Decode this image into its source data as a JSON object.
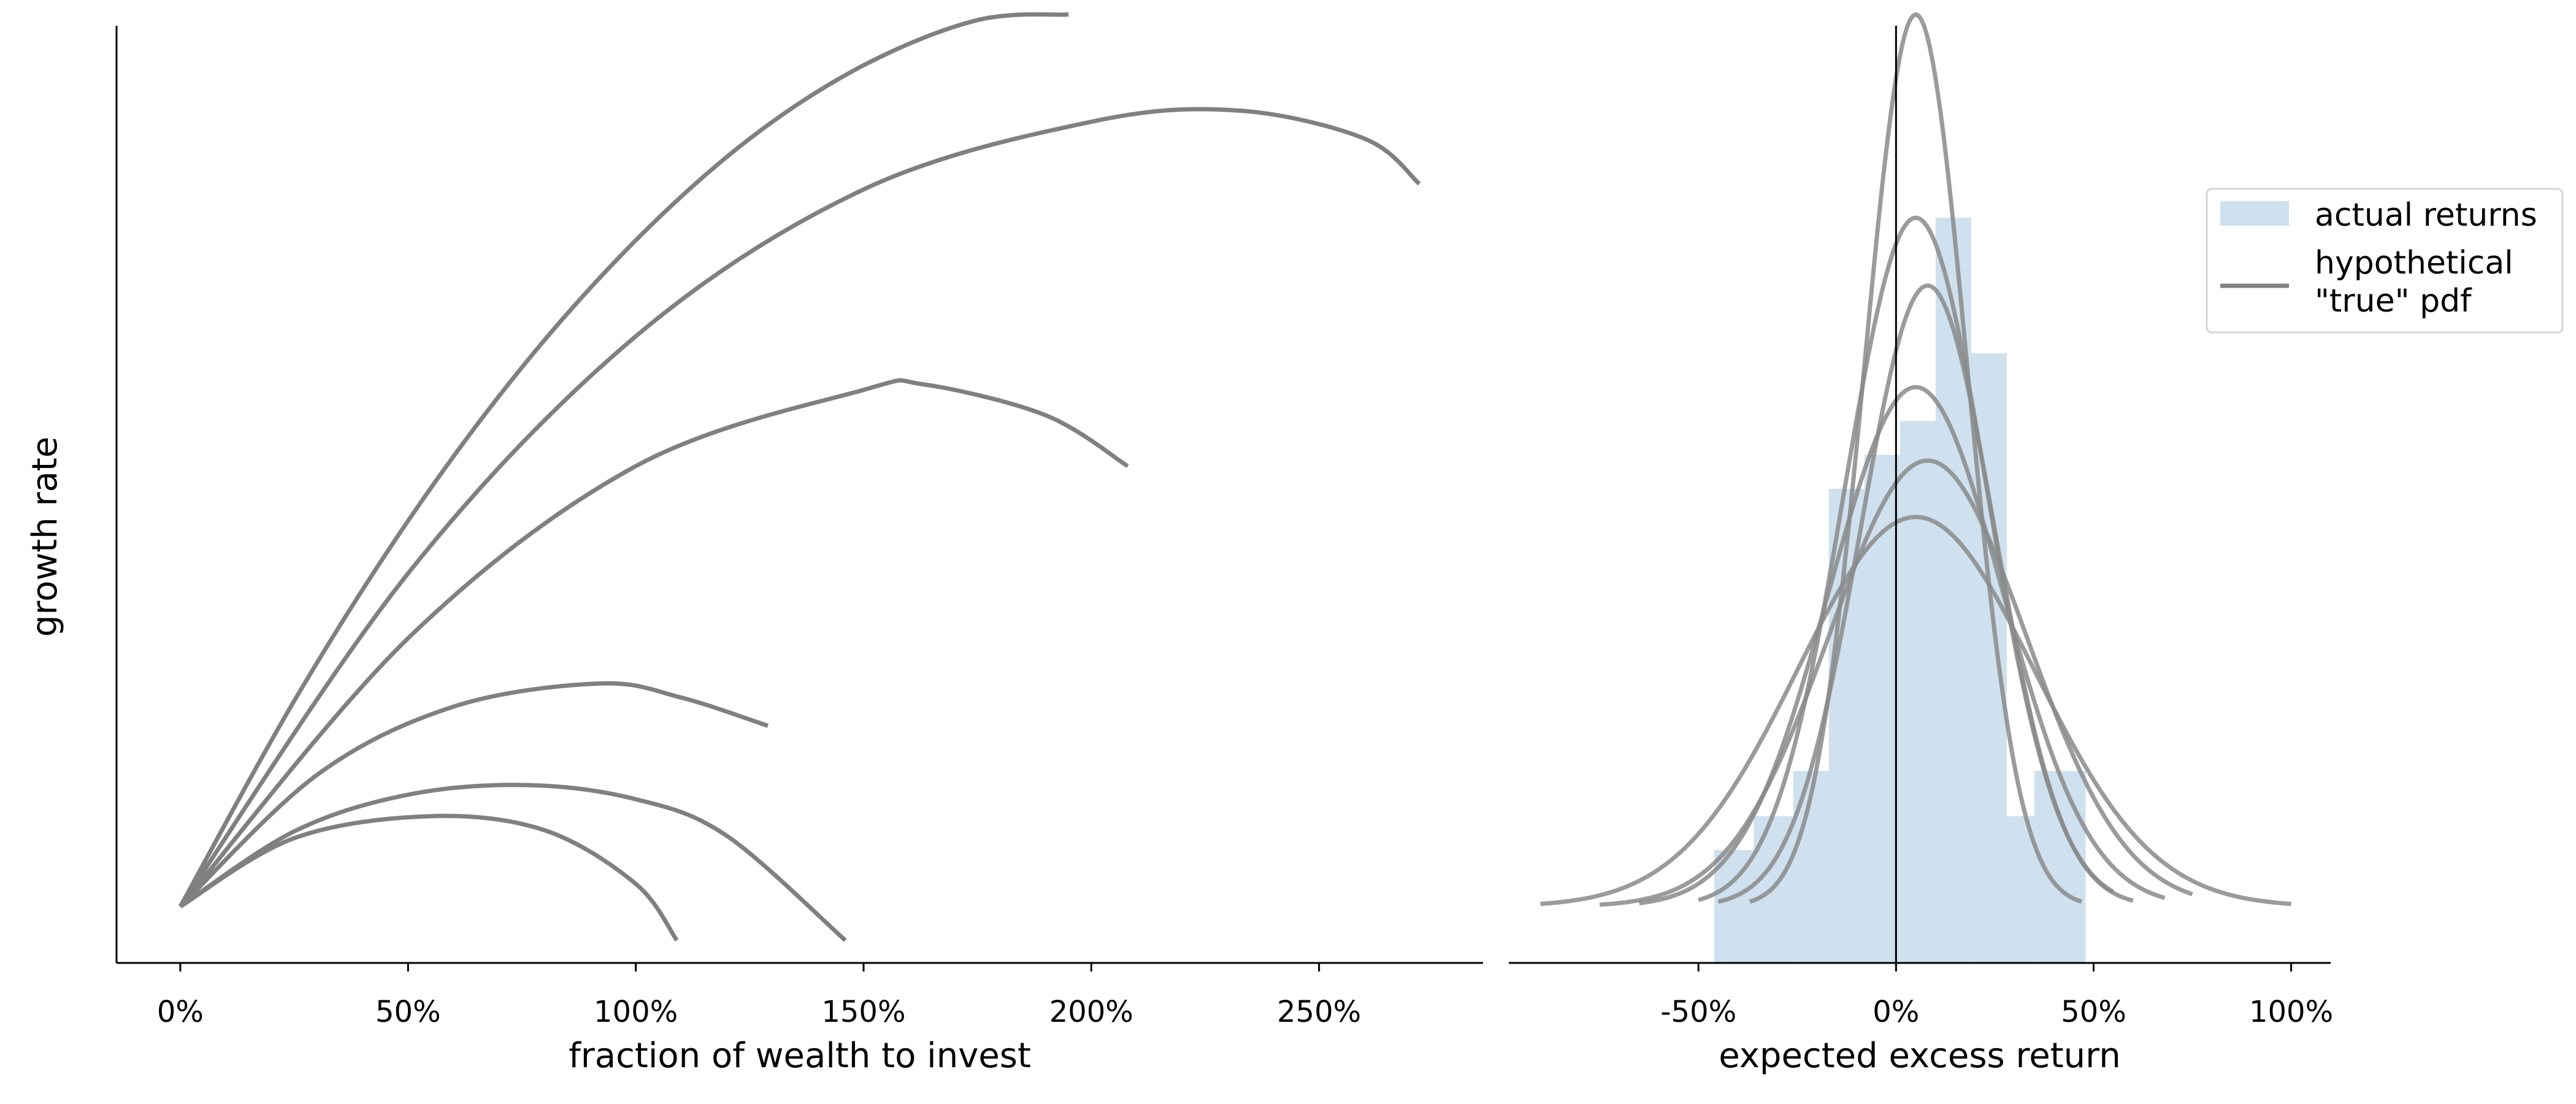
{
  "chart_data": [
    {
      "type": "line",
      "title": "",
      "xlabel": "fraction of wealth to invest",
      "ylabel": "growth rate",
      "xlim": [
        -0.14,
        2.86
      ],
      "ylim": [
        -0.1,
        1.56
      ],
      "xticks": [
        0,
        0.5,
        1.0,
        1.5,
        2.0,
        2.5
      ],
      "xtick_labels": [
        "0%",
        "50%",
        "100%",
        "150%",
        "200%",
        "250%"
      ],
      "yticks_visible": false,
      "grid": false,
      "color": "#808080",
      "series": [
        {
          "x": [
            0,
            0.25,
            0.5,
            0.75,
            1.0,
            1.25,
            1.5,
            1.75,
            1.95
          ],
          "y": [
            0,
            0.364,
            0.683,
            0.955,
            1.18,
            1.36,
            1.49,
            1.57,
            1.58
          ]
        },
        {
          "x": [
            0,
            0.5,
            1.0,
            1.5,
            2.0,
            2.32,
            2.6,
            2.72
          ],
          "y": [
            0,
            0.59,
            1.01,
            1.27,
            1.39,
            1.41,
            1.36,
            1.28
          ]
        },
        {
          "x": [
            0,
            0.5,
            1.0,
            1.5,
            1.63,
            1.9,
            2.08
          ],
          "y": [
            0,
            0.475,
            0.78,
            0.915,
            0.925,
            0.87,
            0.78
          ]
        },
        {
          "x": [
            0,
            0.3,
            0.6,
            0.92,
            1.1,
            1.29
          ],
          "y": [
            0,
            0.233,
            0.354,
            0.395,
            0.37,
            0.32
          ]
        },
        {
          "x": [
            0,
            0.25,
            0.5,
            0.76,
            1.0,
            1.2,
            1.46
          ],
          "y": [
            0,
            0.133,
            0.198,
            0.215,
            0.19,
            0.125,
            -0.06
          ]
        },
        {
          "x": [
            0,
            0.25,
            0.55,
            0.8,
            1.0,
            1.09
          ],
          "y": [
            0,
            0.121,
            0.16,
            0.135,
            0.04,
            -0.06
          ]
        }
      ]
    },
    {
      "type": "histogram",
      "title": "",
      "xlabel": "expected excess return",
      "ylabel": "",
      "xlim": [
        -0.98,
        1.1
      ],
      "ylim": [
        -0.1,
        1.56
      ],
      "xticks": [
        -0.5,
        0,
        0.5,
        1.0
      ],
      "xtick_labels": [
        "-50%",
        "0%",
        "50%",
        "100%"
      ],
      "yticks_visible": false,
      "vertical_line_x": 0,
      "grid": false,
      "legend_position": "upper right",
      "legend": [
        {
          "label": "actual returns",
          "kind": "patch",
          "color": "#cfe0ee"
        },
        {
          "label": "hypothetical\n\"true\" pdf",
          "kind": "line",
          "color": "#808080"
        }
      ],
      "histogram": {
        "bin_edges": [
          -0.46,
          -0.36,
          -0.26,
          -0.17,
          -0.08,
          0.01,
          0.1,
          0.19,
          0.28,
          0.35,
          0.48
        ],
        "counts": [
          0.1,
          0.16,
          0.24,
          0.74,
          0.8,
          0.86,
          1.22,
          0.98,
          0.16,
          0.24
        ],
        "color": "#cfe0ee"
      },
      "pdf_curves": [
        {
          "mu": 0.05,
          "sigma": 0.13,
          "peak": 1.58,
          "x_range": [
            -0.37,
            0.47
          ]
        },
        {
          "mu": 0.05,
          "sigma": 0.18,
          "peak": 1.22,
          "x_range": [
            -0.5,
            0.55
          ]
        },
        {
          "mu": 0.08,
          "sigma": 0.17,
          "peak": 1.1,
          "x_range": [
            -0.45,
            0.6
          ]
        },
        {
          "mu": 0.05,
          "sigma": 0.22,
          "peak": 0.92,
          "x_range": [
            -0.65,
            0.68
          ]
        },
        {
          "mu": 0.08,
          "sigma": 0.25,
          "peak": 0.79,
          "x_range": [
            -0.75,
            0.75
          ]
        },
        {
          "mu": 0.05,
          "sigma": 0.3,
          "peak": 0.69,
          "x_range": [
            -0.9,
            1.0
          ]
        }
      ],
      "pdf_color": "#8a8a8a"
    }
  ]
}
